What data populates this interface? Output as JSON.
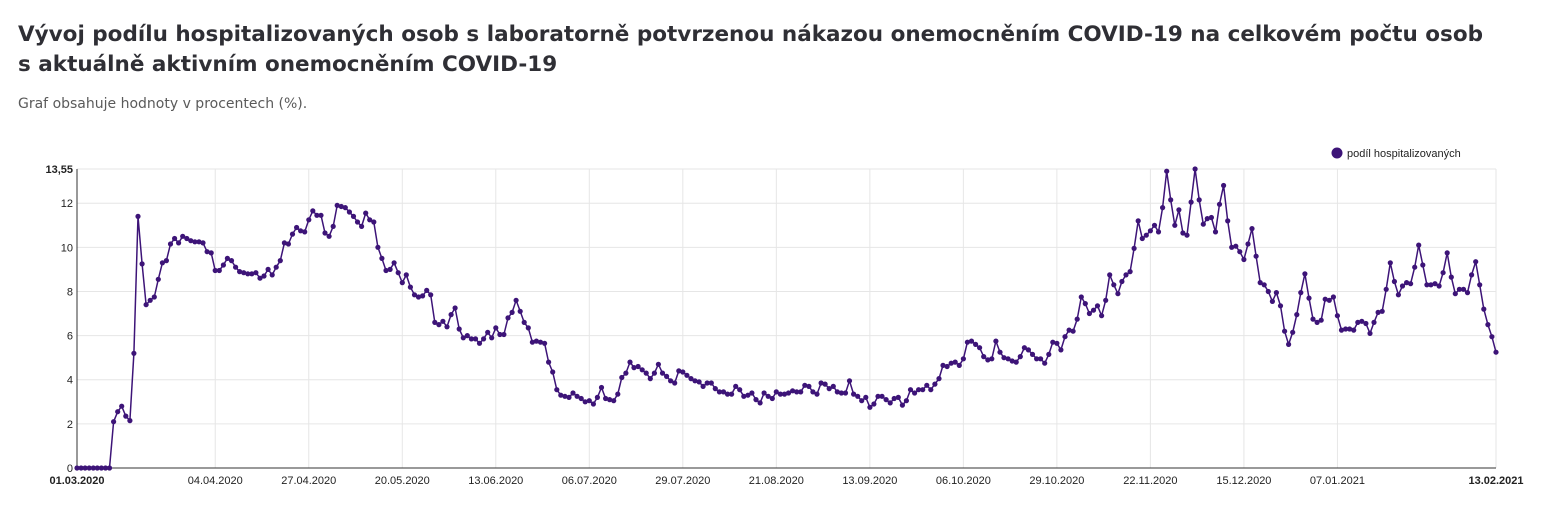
{
  "title": "Vývoj podílu hospitalizovaných osob s laboratorně potvrzenou nákazou onemocněním COVID-19 na celkovém počtu osob s aktuálně aktivním onemocněním COVID-19",
  "subtitle": "Graf obsahuje hodnoty v procentech (%).",
  "colors": {
    "series": "#3d1478",
    "grid": "#e6e6e6",
    "axis": "#333333"
  },
  "chart_data": {
    "type": "line",
    "legend_position": "top-right",
    "grid": true,
    "x_range": [
      "01.03.2020",
      "13.02.2021"
    ],
    "y_range": [
      0,
      13.55
    ],
    "x_tick_labels": [
      "01.03.2020",
      "04.04.2020",
      "27.04.2020",
      "20.05.2020",
      "13.06.2020",
      "06.07.2020",
      "29.07.2020",
      "21.08.2020",
      "13.09.2020",
      "06.10.2020",
      "29.10.2020",
      "22.11.2020",
      "15.12.2020",
      "07.01.2021",
      "13.02.2021"
    ],
    "y_tick_labels": [
      "0",
      "2",
      "4",
      "6",
      "8",
      "10",
      "12",
      "13,55"
    ],
    "y_ticks": [
      0,
      2,
      4,
      6,
      8,
      10,
      12,
      13.55
    ],
    "series": [
      {
        "name": "podíl hospitalizovaných",
        "start_date": "2020-03-01",
        "values": [
          0,
          0,
          0,
          0,
          0,
          0,
          0,
          0,
          0,
          2.1,
          2.55,
          2.8,
          2.35,
          2.15,
          5.2,
          11.4,
          9.25,
          7.4,
          7.6,
          7.75,
          8.55,
          9.3,
          9.4,
          10.15,
          10.4,
          10.2,
          10.5,
          10.4,
          10.3,
          10.25,
          10.25,
          10.2,
          9.8,
          9.75,
          8.95,
          8.95,
          9.2,
          9.5,
          9.4,
          9.1,
          8.9,
          8.85,
          8.8,
          8.8,
          8.85,
          8.6,
          8.7,
          9.0,
          8.75,
          9.1,
          9.4,
          10.2,
          10.15,
          10.6,
          10.9,
          10.75,
          10.7,
          11.25,
          11.65,
          11.45,
          11.45,
          10.65,
          10.5,
          10.95,
          11.9,
          11.85,
          11.8,
          11.6,
          11.4,
          11.15,
          10.95,
          11.55,
          11.25,
          11.15,
          10.0,
          9.5,
          8.95,
          9.0,
          9.3,
          8.85,
          8.4,
          8.75,
          8.2,
          7.85,
          7.75,
          7.8,
          8.05,
          7.85,
          6.6,
          6.5,
          6.65,
          6.4,
          6.95,
          7.25,
          6.3,
          5.9,
          6.0,
          5.85,
          5.85,
          5.65,
          5.85,
          6.15,
          5.9,
          6.35,
          6.05,
          6.05,
          6.8,
          7.05,
          7.6,
          7.1,
          6.6,
          6.35,
          5.7,
          5.75,
          5.7,
          5.65,
          4.8,
          4.35,
          3.55,
          3.3,
          3.25,
          3.2,
          3.4,
          3.25,
          3.15,
          3.0,
          3.05,
          2.9,
          3.2,
          3.65,
          3.15,
          3.1,
          3.05,
          3.35,
          4.1,
          4.3,
          4.8,
          4.55,
          4.6,
          4.45,
          4.3,
          4.05,
          4.3,
          4.7,
          4.3,
          4.15,
          3.95,
          3.85,
          4.4,
          4.35,
          4.2,
          4.05,
          3.95,
          3.9,
          3.7,
          3.85,
          3.85,
          3.6,
          3.45,
          3.45,
          3.35,
          3.35,
          3.7,
          3.55,
          3.25,
          3.3,
          3.4,
          3.1,
          2.95,
          3.4,
          3.25,
          3.15,
          3.45,
          3.35,
          3.35,
          3.4,
          3.5,
          3.45,
          3.45,
          3.75,
          3.7,
          3.45,
          3.35,
          3.85,
          3.8,
          3.6,
          3.7,
          3.45,
          3.4,
          3.4,
          3.95,
          3.35,
          3.25,
          3.05,
          3.2,
          2.75,
          2.9,
          3.25,
          3.25,
          3.1,
          2.95,
          3.15,
          3.2,
          2.85,
          3.05,
          3.55,
          3.4,
          3.55,
          3.55,
          3.75,
          3.55,
          3.8,
          4.05,
          4.65,
          4.6,
          4.75,
          4.8,
          4.65,
          4.95,
          5.7,
          5.75,
          5.6,
          5.45,
          5.05,
          4.9,
          4.95,
          5.75,
          5.25,
          5.0,
          4.95,
          4.85,
          4.8,
          5.05,
          5.45,
          5.35,
          5.15,
          4.95,
          4.95,
          4.75,
          5.15,
          5.7,
          5.65,
          5.35,
          5.95,
          6.25,
          6.2,
          6.75,
          7.75,
          7.45,
          7.0,
          7.15,
          7.35,
          6.9,
          7.6,
          8.75,
          8.3,
          7.9,
          8.45,
          8.75,
          8.9,
          9.95,
          11.2,
          10.4,
          10.55,
          10.75,
          11.0,
          10.7,
          11.8,
          13.45,
          12.15,
          11.0,
          11.7,
          10.65,
          10.55,
          12.05,
          13.55,
          12.15,
          11.05,
          11.3,
          11.35,
          10.7,
          11.95,
          12.8,
          11.2,
          10.0,
          10.05,
          9.8,
          9.45,
          10.15,
          10.85,
          9.6,
          8.4,
          8.3,
          8.0,
          7.55,
          7.95,
          7.35,
          6.2,
          5.6,
          6.15,
          6.95,
          7.95,
          8.8,
          7.7,
          6.75,
          6.6,
          6.7,
          7.65,
          7.6,
          7.75,
          6.9,
          6.25,
          6.3,
          6.3,
          6.25,
          6.6,
          6.65,
          6.55,
          6.1,
          6.6,
          7.05,
          7.1,
          8.1,
          9.3,
          8.45,
          7.85,
          8.25,
          8.4,
          8.35,
          9.1,
          10.1,
          9.2,
          8.3,
          8.3,
          8.35,
          8.25,
          8.85,
          9.75,
          8.65,
          7.9,
          8.1,
          8.1,
          7.95,
          8.75,
          9.35,
          8.3,
          7.2,
          6.5,
          5.95,
          5.25
        ]
      }
    ]
  }
}
